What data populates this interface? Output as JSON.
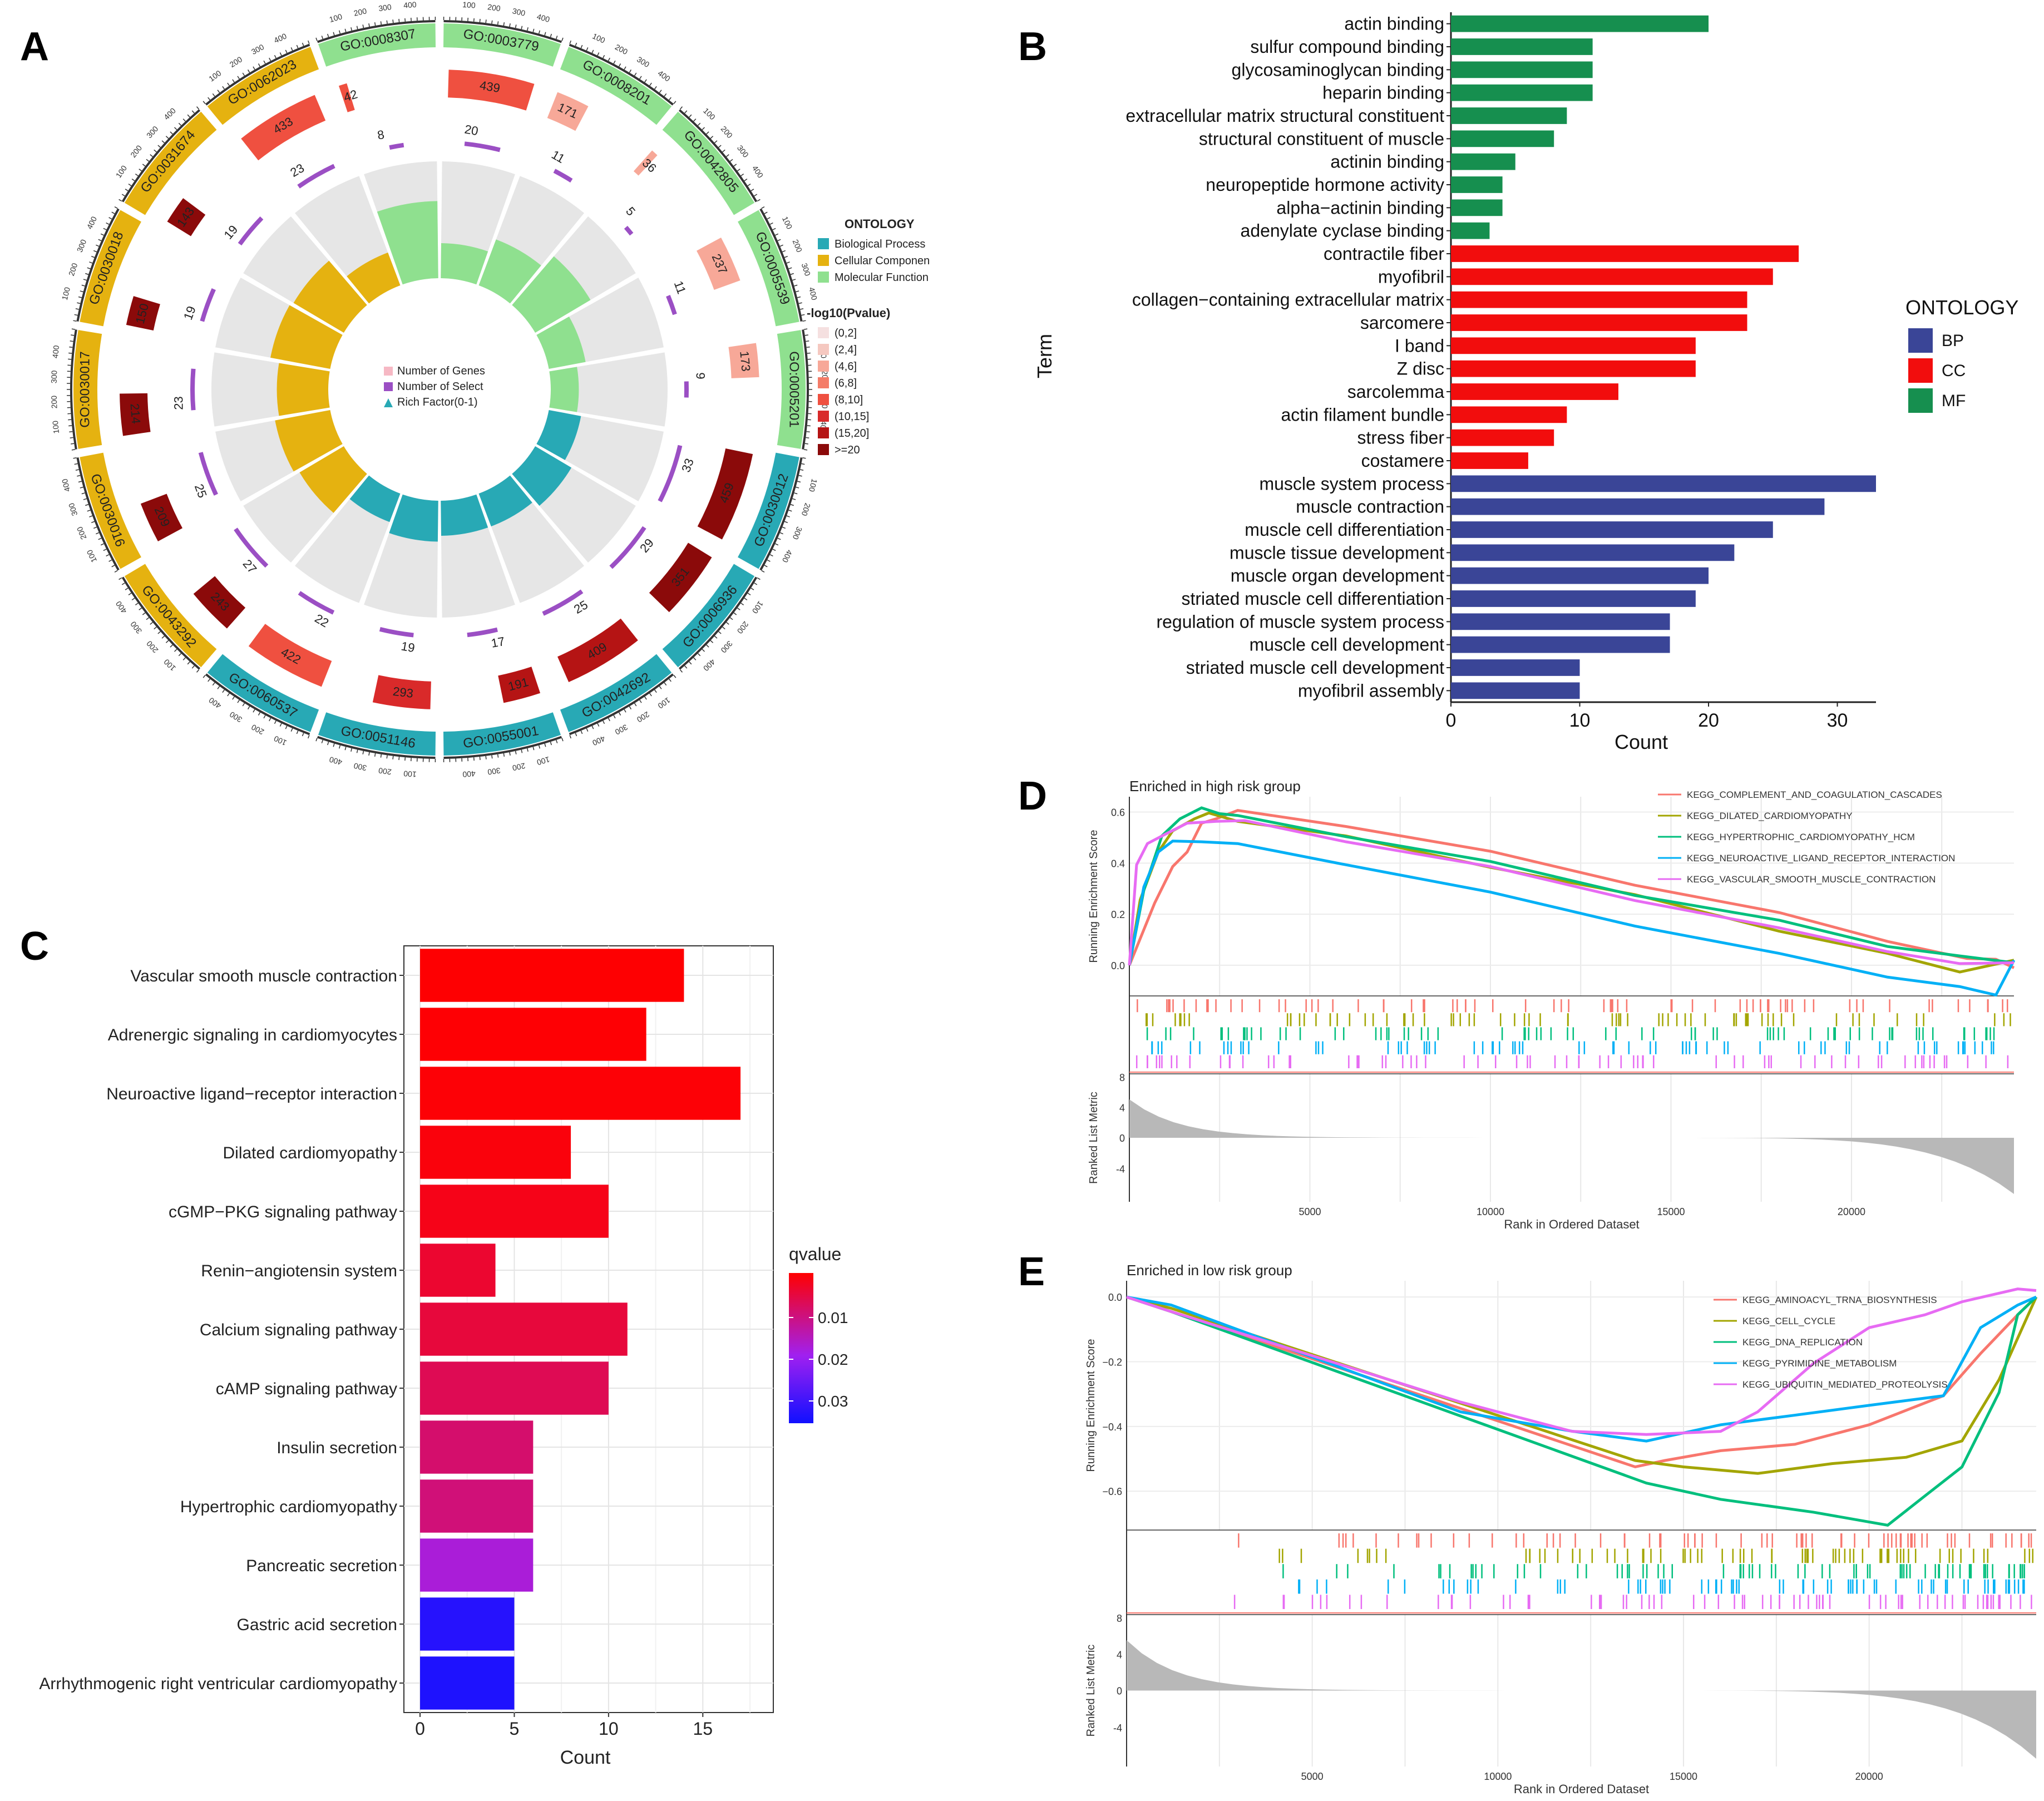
{
  "panel_labels": {
    "A": "A",
    "B": "B",
    "C": "C",
    "D": "D",
    "E": "E"
  },
  "colors": {
    "bp": "#28a9b5",
    "cc": "#e5b210",
    "mf": "#8fe08f",
    "bp_bar": "#3a4597",
    "cc_bar": "#f20d0d",
    "mf_bar": "#168f4f",
    "q_low": "#ff0000",
    "q_mid": "#a020f0",
    "q_high": "#1010ff",
    "gsea": [
      "#f8766d",
      "#a3a500",
      "#00bf7d",
      "#00b0f6",
      "#e76bf3"
    ],
    "p_scale": [
      "#f5e0e0",
      "#f5c8c0",
      "#f7a898",
      "#f47c68",
      "#ef5040",
      "#d92a2a",
      "#b51414",
      "#8b0a0a"
    ]
  },
  "chart_data": [
    {
      "panel": "A",
      "type": "circular-go",
      "legend_title": "ONTOLOGY",
      "ontology_labels": [
        "Biological Process",
        "Cellular Componen",
        "Molecular Function"
      ],
      "p_title": "-log10(Pvalue)",
      "p_labels": [
        "(0,2]",
        "(2,4]",
        "(4,6]",
        "(6,8]",
        "(8,10]",
        "(10,15]",
        "(15,20]",
        ">=20"
      ],
      "center_legend": [
        "Number of Genes",
        "Number of Select",
        "Rich Factor(0-1)"
      ],
      "ticks": [
        "100",
        "200",
        "300",
        "400"
      ],
      "terms": [
        {
          "id": "GO:0003779",
          "ont": "MF",
          "genes": 439,
          "select": 20,
          "rich": 0.3,
          "p": 4
        },
        {
          "id": "GO:0008201",
          "ont": "MF",
          "genes": 171,
          "select": 11,
          "rich": 0.42,
          "p": 2
        },
        {
          "id": "GO:0042805",
          "ont": "MF",
          "genes": 36,
          "select": 5,
          "rich": 0.55,
          "p": 2
        },
        {
          "id": "GO:0005539",
          "ont": "MF",
          "genes": 237,
          "select": 11,
          "rich": 0.32,
          "p": 2
        },
        {
          "id": "GO:0005201",
          "ont": "MF",
          "genes": 173,
          "select": 9,
          "rich": 0.24,
          "p": 2
        },
        {
          "id": "GO:0030012",
          "ont": "BP",
          "genes": 459,
          "select": 33,
          "rich": 0.28,
          "p": 7
        },
        {
          "id": "GO:0006936",
          "ont": "BP",
          "genes": 351,
          "select": 29,
          "rich": 0.36,
          "p": 7
        },
        {
          "id": "GO:0042692",
          "ont": "BP",
          "genes": 409,
          "select": 25,
          "rich": 0.3,
          "p": 6
        },
        {
          "id": "GO:0055001",
          "ont": "BP",
          "genes": 191,
          "select": 17,
          "rich": 0.3,
          "p": 6
        },
        {
          "id": "GO:0051146",
          "ont": "BP",
          "genes": 293,
          "select": 19,
          "rich": 0.35,
          "p": 5
        },
        {
          "id": "GO:0060537",
          "ont": "BP",
          "genes": 422,
          "select": 22,
          "rich": 0.26,
          "p": 4
        },
        {
          "id": "GO:0043292",
          "ont": "CC",
          "genes": 243,
          "select": 27,
          "rich": 0.44,
          "p": 7
        },
        {
          "id": "GO:0030016",
          "ont": "CC",
          "genes": 209,
          "select": 25,
          "rich": 0.48,
          "p": 7
        },
        {
          "id": "GO:0030017",
          "ont": "CC",
          "genes": 214,
          "select": 23,
          "rich": 0.44,
          "p": 7
        },
        {
          "id": "GO:0030018",
          "ont": "CC",
          "genes": 150,
          "select": 19,
          "rich": 0.52,
          "p": 7
        },
        {
          "id": "GO:0031674",
          "ont": "CC",
          "genes": 143,
          "select": 19,
          "rich": 0.5,
          "p": 7
        },
        {
          "id": "GO:0062023",
          "ont": "CC",
          "genes": 433,
          "select": 23,
          "rich": 0.3,
          "p": 4
        },
        {
          "id": "GO:0008307",
          "ont": "MF",
          "genes": 42,
          "select": 8,
          "rich": 0.66,
          "p": 4
        }
      ]
    },
    {
      "panel": "B",
      "type": "bar",
      "orientation": "horizontal",
      "ylabel": "Term",
      "xlabel": "Count",
      "xlim": [
        0,
        33
      ],
      "xticks": [
        0,
        10,
        20,
        30
      ],
      "legend_title": "ONTOLOGY",
      "legend": [
        "BP",
        "CC",
        "MF"
      ],
      "categories": [
        "actin binding",
        "sulfur compound binding",
        "glycosaminoglycan binding",
        "heparin binding",
        "extracellular matrix structural constituent",
        "structural constituent of muscle",
        "actinin binding",
        "neuropeptide hormone activity",
        "alpha−actinin binding",
        "adenylate cyclase binding",
        "contractile fiber",
        "myofibril",
        "collagen−containing extracellular matrix",
        "sarcomere",
        "I band",
        "Z disc",
        "sarcolemma",
        "actin filament bundle",
        "stress fiber",
        "costamere",
        "muscle system process",
        "muscle contraction",
        "muscle cell differentiation",
        "muscle tissue development",
        "muscle organ development",
        "striated muscle cell differentiation",
        "regulation of muscle system process",
        "muscle cell development",
        "striated muscle cell development",
        "myofibril assembly"
      ],
      "values": [
        20,
        11,
        11,
        11,
        9,
        8,
        5,
        4,
        4,
        3,
        27,
        25,
        23,
        23,
        19,
        19,
        13,
        9,
        8,
        6,
        33,
        29,
        25,
        22,
        20,
        19,
        17,
        17,
        10,
        10
      ],
      "groups": [
        "MF",
        "MF",
        "MF",
        "MF",
        "MF",
        "MF",
        "MF",
        "MF",
        "MF",
        "MF",
        "CC",
        "CC",
        "CC",
        "CC",
        "CC",
        "CC",
        "CC",
        "CC",
        "CC",
        "CC",
        "BP",
        "BP",
        "BP",
        "BP",
        "BP",
        "BP",
        "BP",
        "BP",
        "BP",
        "BP"
      ]
    },
    {
      "panel": "C",
      "type": "bar",
      "orientation": "horizontal",
      "xlabel": "Count",
      "xlim": [
        0,
        17.5
      ],
      "xticks": [
        0,
        5,
        10,
        15
      ],
      "legend_title": "qvalue",
      "legend_ticks": [
        "0.01",
        "0.02",
        "0.03"
      ],
      "categories": [
        "Vascular smooth muscle contraction",
        "Adrenergic signaling in cardiomyocytes",
        "Neuroactive ligand−receptor interaction",
        "Dilated cardiomyopathy",
        "cGMP−PKG signaling pathway",
        "Renin−angiotensin system",
        "Calcium signaling pathway",
        "cAMP signaling pathway",
        "Insulin secretion",
        "Hypertrophic cardiomyopathy",
        "Pancreatic secretion",
        "Gastric acid secretion",
        "Arrhythmogenic right ventricular cardiomyopathy"
      ],
      "values": [
        14,
        12,
        17,
        8,
        10,
        4,
        11,
        10,
        6,
        6,
        6,
        5,
        5
      ],
      "qvalues": [
        0.0002,
        0.0003,
        0.0005,
        0.001,
        0.002,
        0.004,
        0.005,
        0.007,
        0.009,
        0.01,
        0.018,
        0.037,
        0.038
      ]
    },
    {
      "panel": "D",
      "type": "line",
      "title": "Enriched in high risk group",
      "ylabel": "Running Enrichment Score",
      "ylabel2": "Ranked List Metric",
      "xlabel": "Rank in Ordered Dataset",
      "xlim": [
        0,
        24500
      ],
      "ylim": [
        -0.12,
        0.66
      ],
      "yticks": [
        0,
        0.2,
        0.4,
        0.6
      ],
      "ytick_labels": [
        "0.0",
        "0.2",
        "0.4",
        "0.6"
      ],
      "metric_yticks": [
        "8",
        "4",
        "0",
        "-4"
      ],
      "xticks": [
        5000,
        10000,
        15000,
        20000
      ],
      "series": [
        {
          "name": "KEGG_COMPLEMENT_AND_COAGULATION_CASCADES",
          "x": [
            0,
            700,
            1200,
            1600,
            2000,
            2400,
            3000,
            6000,
            10000,
            14000,
            18000,
            21000,
            23200,
            24000,
            24500
          ],
          "y": [
            0,
            0.25,
            0.38,
            0.45,
            0.55,
            0.58,
            0.6,
            0.55,
            0.44,
            0.32,
            0.2,
            0.1,
            0.02,
            0.03,
            -0.01
          ]
        },
        {
          "name": "KEGG_DILATED_CARDIOMYOPATHY",
          "x": [
            0,
            300,
            800,
            1200,
            1800,
            2200,
            3000,
            6000,
            10000,
            14000,
            18000,
            21000,
            23000,
            24500
          ],
          "y": [
            0,
            0.25,
            0.45,
            0.52,
            0.58,
            0.59,
            0.57,
            0.5,
            0.39,
            0.27,
            0.14,
            0.04,
            -0.02,
            0.02
          ]
        },
        {
          "name": "KEGG_HYPERTROPHIC_CARDIOMYOPATHY_HCM",
          "x": [
            0,
            400,
            900,
            1400,
            2000,
            2500,
            3000,
            6000,
            10000,
            14000,
            18000,
            21000,
            23000,
            24500
          ],
          "y": [
            0,
            0.3,
            0.5,
            0.58,
            0.61,
            0.6,
            0.58,
            0.51,
            0.4,
            0.28,
            0.17,
            0.08,
            0.03,
            0.01
          ]
        },
        {
          "name": "KEGG_NEUROACTIVE_LIGAND_RECEPTOR_INTERACTION",
          "x": [
            0,
            400,
            800,
            1200,
            2000,
            3000,
            6000,
            10000,
            14000,
            18000,
            21000,
            23000,
            24000,
            24500
          ],
          "y": [
            0,
            0.3,
            0.45,
            0.48,
            0.49,
            0.47,
            0.4,
            0.28,
            0.16,
            0.04,
            -0.04,
            -0.09,
            -0.11,
            0.02
          ]
        },
        {
          "name": "KEGG_VASCULAR_SMOOTH_MUSCLE_CONTRACTION",
          "x": [
            0,
            200,
            500,
            1000,
            1600,
            2400,
            3200,
            6000,
            10000,
            14000,
            18000,
            21000,
            23000,
            24500
          ],
          "y": [
            0,
            0.4,
            0.47,
            0.52,
            0.55,
            0.57,
            0.56,
            0.49,
            0.38,
            0.26,
            0.14,
            0.06,
            0.0,
            0.01
          ]
        }
      ]
    },
    {
      "panel": "E",
      "type": "line",
      "title": "Enriched in low risk group",
      "ylabel": "Running Enrichment Score",
      "ylabel2": "Ranked List Metric",
      "xlabel": "Rank in Ordered Dataset",
      "xlim": [
        0,
        24500
      ],
      "ylim": [
        -0.72,
        0.05
      ],
      "yticks": [
        0,
        -0.2,
        -0.4,
        -0.6
      ],
      "ytick_labels": [
        "0.0",
        "−0.2",
        "−0.4",
        "−0.6"
      ],
      "metric_yticks": [
        "8",
        "4",
        "0",
        "-4"
      ],
      "xticks": [
        5000,
        10000,
        15000,
        20000
      ],
      "series": [
        {
          "name": "KEGG_AMINOACYL_TRNA_BIOSYNTHESIS",
          "x": [
            0,
            1200,
            13700,
            14500,
            16000,
            18000,
            20000,
            22000,
            23000,
            24000,
            24500
          ],
          "y": [
            0,
            -0.04,
            -0.53,
            -0.5,
            -0.48,
            -0.45,
            -0.4,
            -0.3,
            -0.18,
            -0.05,
            0
          ]
        },
        {
          "name": "KEGG_CELL_CYCLE",
          "x": [
            0,
            1200,
            13700,
            15000,
            17000,
            19000,
            21000,
            22500,
            23500,
            24500
          ],
          "y": [
            0,
            -0.04,
            -0.5,
            -0.53,
            -0.54,
            -0.52,
            -0.49,
            -0.45,
            -0.25,
            0
          ]
        },
        {
          "name": "KEGG_DNA_REPLICATION",
          "x": [
            0,
            1200,
            14000,
            16000,
            18500,
            20500,
            21500,
            22500,
            23500,
            24000,
            24500
          ],
          "y": [
            0,
            -0.04,
            -0.58,
            -0.62,
            -0.67,
            -0.7,
            -0.62,
            -0.52,
            -0.3,
            -0.05,
            0
          ]
        },
        {
          "name": "KEGG_PYRIMIDINE_METABOLISM",
          "x": [
            0,
            1200,
            9000,
            12000,
            14000,
            16000,
            18000,
            20000,
            22000,
            23000,
            24000,
            24500
          ],
          "y": [
            0,
            -0.03,
            -0.35,
            -0.42,
            -0.44,
            -0.4,
            -0.36,
            -0.34,
            -0.3,
            -0.1,
            -0.02,
            0
          ]
        },
        {
          "name": "KEGG_UBIQUITIN_MEDIATED_PROTEOLYSIS",
          "x": [
            0,
            1200,
            9000,
            12000,
            14000,
            16000,
            17000,
            18500,
            20000,
            21500,
            22500,
            24000,
            24500
          ],
          "y": [
            0,
            -0.04,
            -0.33,
            -0.41,
            -0.43,
            -0.41,
            -0.36,
            -0.2,
            -0.1,
            -0.05,
            -0.02,
            0.03,
            0.02
          ]
        }
      ]
    }
  ]
}
